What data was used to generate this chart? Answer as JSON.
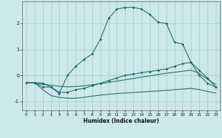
{
  "xlabel": "Humidex (Indice chaleur)",
  "bg_color": "#cce8ea",
  "grid_color": "#aacccc",
  "line_color": "#1a6b6b",
  "xlim": [
    -0.5,
    23.5
  ],
  "ylim": [
    -1.35,
    2.85
  ],
  "yticks": [
    -1,
    0,
    1,
    2
  ],
  "xticks": [
    0,
    1,
    2,
    3,
    4,
    5,
    6,
    7,
    8,
    9,
    10,
    11,
    12,
    13,
    14,
    15,
    16,
    17,
    18,
    19,
    20,
    21,
    22,
    23
  ],
  "curve1_x": [
    0,
    1,
    2,
    3,
    4,
    5,
    6,
    7,
    8,
    9,
    10,
    11,
    12,
    13,
    14,
    15,
    16,
    17,
    18,
    19,
    20,
    21,
    22,
    23
  ],
  "curve1_y": [
    -0.28,
    -0.28,
    -0.3,
    -0.45,
    -0.7,
    0.0,
    0.35,
    0.62,
    0.82,
    1.4,
    2.2,
    2.55,
    2.62,
    2.62,
    2.55,
    2.35,
    2.05,
    2.0,
    1.28,
    1.2,
    0.5,
    0.0,
    -0.3,
    -0.45
  ],
  "curve2_x": [
    0,
    1,
    2,
    3,
    4,
    5,
    6,
    7,
    8,
    9,
    10,
    11,
    12,
    13,
    14,
    15,
    16,
    17,
    18,
    19,
    20,
    21,
    22,
    23
  ],
  "curve2_y": [
    -0.28,
    -0.28,
    -0.45,
    -0.45,
    -0.65,
    -0.65,
    -0.55,
    -0.5,
    -0.4,
    -0.3,
    -0.2,
    -0.1,
    0.0,
    0.05,
    0.1,
    0.15,
    0.2,
    0.25,
    0.35,
    0.45,
    0.5,
    0.2,
    -0.1,
    -0.45
  ],
  "curve3_x": [
    0,
    1,
    2,
    3,
    4,
    5,
    6,
    7,
    8,
    9,
    10,
    11,
    12,
    13,
    14,
    15,
    16,
    17,
    18,
    19,
    20,
    21,
    22,
    23
  ],
  "curve3_y": [
    -0.28,
    -0.28,
    -0.35,
    -0.38,
    -0.42,
    -0.44,
    -0.43,
    -0.4,
    -0.36,
    -0.32,
    -0.27,
    -0.22,
    -0.17,
    -0.12,
    -0.07,
    -0.02,
    0.03,
    0.08,
    0.12,
    0.16,
    0.2,
    0.08,
    -0.15,
    -0.35
  ],
  "curve4_x": [
    0,
    1,
    2,
    3,
    4,
    5,
    6,
    7,
    8,
    9,
    10,
    11,
    12,
    13,
    14,
    15,
    16,
    17,
    18,
    19,
    20,
    21,
    22,
    23
  ],
  "curve4_y": [
    -0.28,
    -0.28,
    -0.55,
    -0.78,
    -0.85,
    -0.88,
    -0.88,
    -0.85,
    -0.8,
    -0.76,
    -0.73,
    -0.7,
    -0.68,
    -0.66,
    -0.64,
    -0.62,
    -0.6,
    -0.58,
    -0.55,
    -0.53,
    -0.5,
    -0.55,
    -0.62,
    -0.68
  ]
}
